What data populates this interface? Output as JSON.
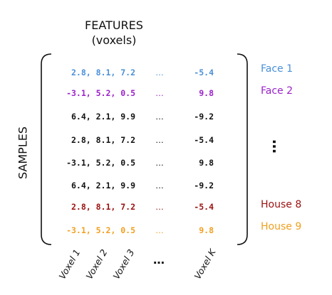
{
  "header": {
    "title_line1": "FEATURES",
    "title_line2": "(voxels)"
  },
  "axis": {
    "rows_label": "SAMPLES"
  },
  "colors": {
    "face1": "#4a90d9",
    "face2": "#9b22c9",
    "black": "#111111",
    "house8": "#9b1111",
    "house9": "#f0a020"
  },
  "rows": [
    {
      "values": "2.8, 8.1, 7.2",
      "dots": "…",
      "last": "-5.4",
      "color": "#4a90d9"
    },
    {
      "values": "-3.1, 5.2, 0.5",
      "dots": "…",
      "last": "9.8",
      "color": "#9b22c9"
    },
    {
      "values": "6.4, 2.1, 9.9",
      "dots": "…",
      "last": "-9.2",
      "color": "#111111"
    },
    {
      "values": "2.8, 8.1, 7.2",
      "dots": "…",
      "last": "-5.4",
      "color": "#111111"
    },
    {
      "values": "-3.1, 5.2, 0.5",
      "dots": "…",
      "last": "9.8",
      "color": "#111111"
    },
    {
      "values": "6.4, 2.1, 9.9",
      "dots": "…",
      "last": "-9.2",
      "color": "#111111"
    },
    {
      "values": "2.8, 8.1, 7.2",
      "dots": "…",
      "last": "-5.4",
      "color": "#9b1111"
    },
    {
      "values": "-3.1, 5.2, 0.5",
      "dots": "…",
      "last": "9.8",
      "color": "#f0a020"
    }
  ],
  "side_labels": {
    "face1": "Face 1",
    "face2": "Face 2",
    "vdots": "…",
    "house8": "House 8",
    "house9": "House 9"
  },
  "columns": {
    "voxel1": "Voxel 1",
    "voxel2": "Voxel 2",
    "voxel3": "Voxel 3",
    "dots": "…",
    "voxelK": "Voxel K"
  }
}
